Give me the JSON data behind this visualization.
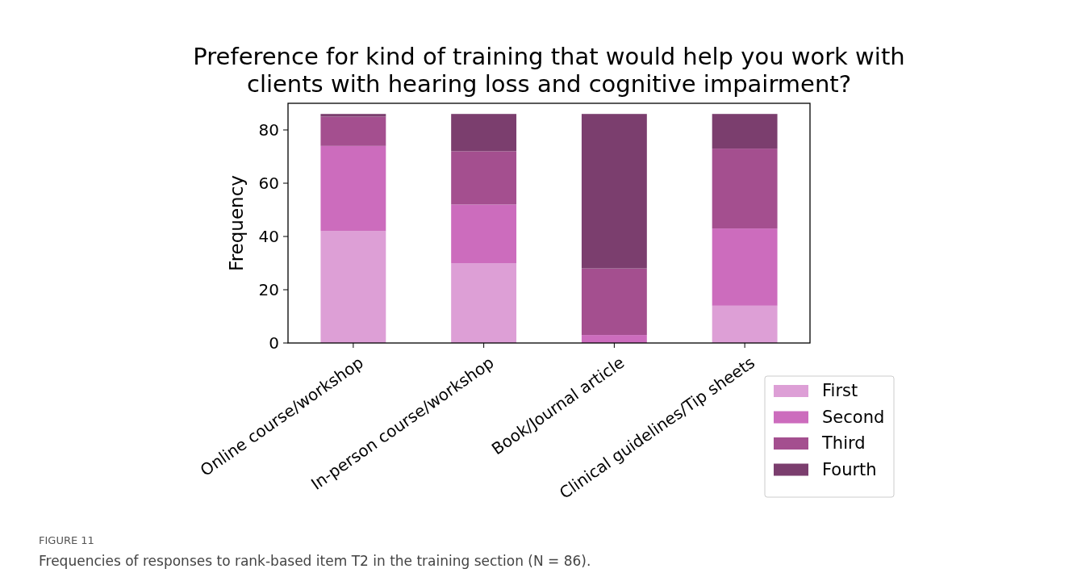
{
  "chart_data": {
    "type": "bar",
    "title": "Preference for kind of training that would help you work with\nclients with hearing loss and cognitive impairment?",
    "ylabel": "Frequency",
    "categories": [
      "Online course/workshop",
      "In-person course/workshop",
      "Book/Journal article",
      "Clinical guidelines/Tip sheets"
    ],
    "stacked": true,
    "series": [
      {
        "name": "First",
        "color": "#dd9fd6",
        "values": [
          42,
          30,
          0,
          14
        ]
      },
      {
        "name": "Second",
        "color": "#cc6cbd",
        "values": [
          32,
          22,
          3,
          29
        ]
      },
      {
        "name": "Third",
        "color": "#a44f8f",
        "values": [
          11,
          20,
          25,
          30
        ]
      },
      {
        "name": "Fourth",
        "color": "#7b3e6e",
        "values": [
          1,
          14,
          58,
          13
        ]
      }
    ],
    "ylim": [
      0,
      90
    ],
    "yticks": [
      0,
      20,
      40,
      60,
      80
    ],
    "legend": "bottom right",
    "annotations": [
      "FIGURE 11",
      "Frequencies of responses to rank-based item T2 in the training section (N = 86)."
    ]
  }
}
